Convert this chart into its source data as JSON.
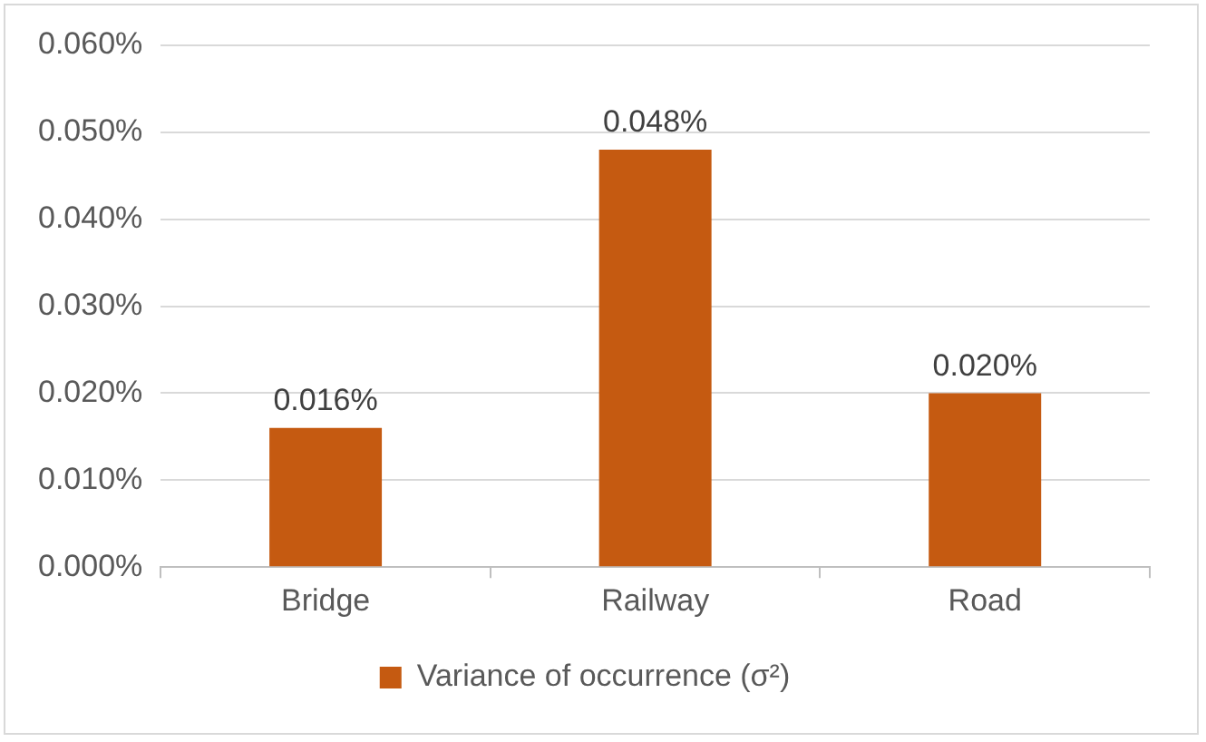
{
  "chart_data": {
    "type": "bar",
    "categories": [
      "Bridge",
      "Railway",
      "Road"
    ],
    "series": [
      {
        "name": "Variance of occurrence (σ²)",
        "color": "#c55a11",
        "values": [
          0.016,
          0.048,
          0.02
        ],
        "value_labels": [
          "0.016%",
          "0.048%",
          "0.020%"
        ]
      }
    ],
    "ylim": [
      0,
      0.06
    ],
    "yticks": [
      {
        "value": 0,
        "label": "0.000%"
      },
      {
        "value": 0.01,
        "label": "0.010%"
      },
      {
        "value": 0.02,
        "label": "0.020%"
      },
      {
        "value": 0.03,
        "label": "0.030%"
      },
      {
        "value": 0.04,
        "label": "0.040%"
      },
      {
        "value": 0.05,
        "label": "0.050%"
      },
      {
        "value": 0.06,
        "label": "0.060%"
      }
    ],
    "grid": "y",
    "legend": "bottom"
  }
}
